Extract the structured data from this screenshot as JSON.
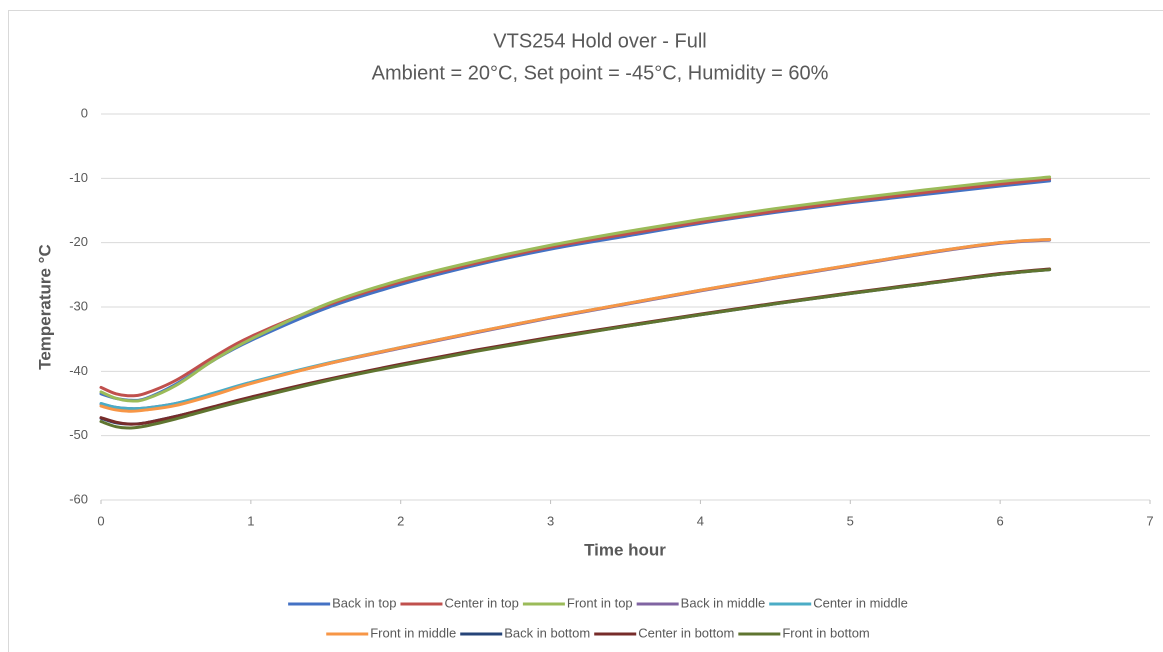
{
  "chart_data": {
    "type": "line",
    "title": "VTS254 Hold over - Full",
    "subtitle": "Ambient = 20°C, Set point = -45°C, Humidity = 60%",
    "x_label": "Time hour",
    "y_label": "Temperature °C",
    "xlim": [
      0,
      7
    ],
    "xticks": [
      0,
      1,
      2,
      3,
      4,
      5,
      6,
      7
    ],
    "ylim": [
      -60,
      0
    ],
    "yticks": [
      0,
      -10,
      -20,
      -30,
      -40,
      -50,
      -60
    ],
    "grid": true,
    "legend": "bottom",
    "x": [
      0,
      0.1,
      0.2,
      0.3,
      0.5,
      0.75,
      1,
      1.5,
      2,
      2.5,
      3,
      3.5,
      4,
      4.5,
      5,
      5.5,
      6,
      6.33
    ],
    "series": [
      {
        "name": "Back in top",
        "color": "#4472c4",
        "values": [
          -43.5,
          -44.2,
          -44.5,
          -44.2,
          -42,
          -38.3,
          -35.2,
          -30.2,
          -26.5,
          -23.5,
          -21,
          -19,
          -17,
          -15.3,
          -13.8,
          -12.5,
          -11.2,
          -10.4
        ]
      },
      {
        "name": "Center in top",
        "color": "#c0504d",
        "values": [
          -42.5,
          -43.5,
          -43.8,
          -43.4,
          -41.4,
          -37.8,
          -34.6,
          -29.8,
          -26.1,
          -23.2,
          -20.7,
          -18.7,
          -16.8,
          -15.1,
          -13.6,
          -12.2,
          -10.9,
          -10.1
        ]
      },
      {
        "name": "Front in top",
        "color": "#9bbb59",
        "values": [
          -43.2,
          -44.2,
          -44.6,
          -44.3,
          -42.2,
          -38.3,
          -35,
          -29.6,
          -25.8,
          -22.9,
          -20.4,
          -18.3,
          -16.4,
          -14.7,
          -13.2,
          -11.8,
          -10.5,
          -9.8
        ]
      },
      {
        "name": "Back in middle",
        "color": "#8064a2",
        "values": [
          -45.1,
          -45.6,
          -45.8,
          -45.7,
          -45,
          -43.5,
          -41.8,
          -38.9,
          -36.4,
          -34,
          -31.7,
          -29.6,
          -27.5,
          -25.5,
          -23.6,
          -21.7,
          -20.1,
          -19.6
        ]
      },
      {
        "name": "Center in middle",
        "color": "#4bacc6",
        "values": [
          -45,
          -45.6,
          -45.8,
          -45.7,
          -45,
          -43.4,
          -41.7,
          -38.8,
          -36.3,
          -33.9,
          -31.6,
          -29.5,
          -27.4,
          -25.4,
          -23.5,
          -21.6,
          -20,
          -19.5
        ]
      },
      {
        "name": "Front in middle",
        "color": "#f79646",
        "values": [
          -45.4,
          -46,
          -46.2,
          -46,
          -45.3,
          -43.7,
          -41.9,
          -38.9,
          -36.3,
          -33.9,
          -31.6,
          -29.5,
          -27.4,
          -25.4,
          -23.5,
          -21.6,
          -20,
          -19.5
        ]
      },
      {
        "name": "Back in bottom",
        "color": "#264478",
        "values": [
          -47.3,
          -48,
          -48.2,
          -48,
          -47,
          -45.6,
          -44.1,
          -41.4,
          -39,
          -36.8,
          -34.8,
          -33,
          -31.2,
          -29.5,
          -27.9,
          -26.4,
          -24.9,
          -24.2
        ]
      },
      {
        "name": "Center in bottom",
        "color": "#772c2a",
        "values": [
          -47.2,
          -47.9,
          -48.2,
          -48,
          -47,
          -45.5,
          -44,
          -41.3,
          -38.9,
          -36.7,
          -34.7,
          -32.9,
          -31.1,
          -29.4,
          -27.8,
          -26.3,
          -24.8,
          -24.1
        ]
      },
      {
        "name": "Front in bottom",
        "color": "#5f7530",
        "values": [
          -47.8,
          -48.6,
          -48.8,
          -48.5,
          -47.4,
          -45.8,
          -44.3,
          -41.5,
          -39.1,
          -36.9,
          -34.9,
          -33,
          -31.2,
          -29.5,
          -27.9,
          -26.4,
          -24.9,
          -24.2
        ]
      }
    ]
  }
}
